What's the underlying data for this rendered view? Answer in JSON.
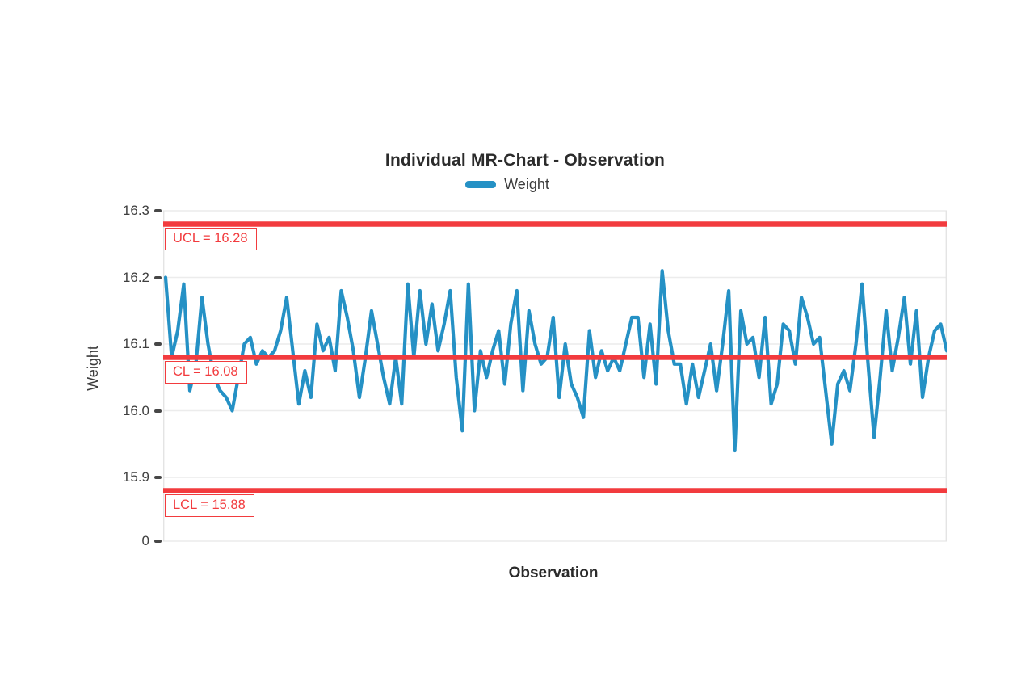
{
  "chart_data": {
    "type": "line",
    "title": "Individual MR-Chart - Observation",
    "xlabel": "Observation",
    "ylabel": "Weight",
    "legend_position": "top",
    "grid": true,
    "y_ticks": [
      "16.3",
      "16.2",
      "16.1",
      "16.0",
      "15.9",
      "0"
    ],
    "ylim_displayed": [
      15.9,
      16.3
    ],
    "annotations": {
      "ucl": {
        "label": "UCL = 16.28",
        "value": 16.28
      },
      "cl": {
        "label": "CL = 16.08",
        "value": 16.08
      },
      "lcl": {
        "label": "LCL = 15.88",
        "value": 15.88
      }
    },
    "colors": {
      "series": "#2591c5",
      "control_lines": "#f23b3e",
      "grid": "#ececec",
      "axis_border": "#e4e4e4",
      "tick_mark": "#474747",
      "text_dark": "#2b2b2b",
      "text_gray": "#3c3c3c"
    },
    "series": [
      {
        "name": "Weight",
        "values": [
          16.2,
          16.08,
          16.12,
          16.19,
          16.03,
          16.07,
          16.17,
          16.1,
          16.05,
          16.03,
          16.02,
          16.0,
          16.05,
          16.1,
          16.11,
          16.07,
          16.09,
          16.08,
          16.09,
          16.12,
          16.17,
          16.09,
          16.01,
          16.06,
          16.02,
          16.13,
          16.09,
          16.11,
          16.06,
          16.18,
          16.14,
          16.09,
          16.02,
          16.08,
          16.15,
          16.1,
          16.05,
          16.01,
          16.08,
          16.01,
          16.19,
          16.08,
          16.18,
          16.1,
          16.16,
          16.09,
          16.13,
          16.18,
          16.05,
          15.97,
          16.19,
          16.0,
          16.09,
          16.05,
          16.09,
          16.12,
          16.04,
          16.13,
          16.18,
          16.03,
          16.15,
          16.1,
          16.07,
          16.08,
          16.14,
          16.02,
          16.1,
          16.04,
          16.02,
          15.99,
          16.12,
          16.05,
          16.09,
          16.06,
          16.08,
          16.06,
          16.1,
          16.14,
          16.14,
          16.05,
          16.13,
          16.04,
          16.21,
          16.12,
          16.07,
          16.07,
          16.01,
          16.07,
          16.02,
          16.06,
          16.1,
          16.03,
          16.1,
          16.18,
          15.94,
          16.15,
          16.1,
          16.11,
          16.05,
          16.14,
          16.01,
          16.04,
          16.13,
          16.12,
          16.07,
          16.17,
          16.14,
          16.1,
          16.11,
          16.03,
          15.95,
          16.04,
          16.06,
          16.03,
          16.1,
          16.19,
          16.07,
          15.96,
          16.05,
          16.15,
          16.06,
          16.11,
          16.17,
          16.07,
          16.15,
          16.02,
          16.08,
          16.12,
          16.13,
          16.09
        ]
      }
    ]
  }
}
